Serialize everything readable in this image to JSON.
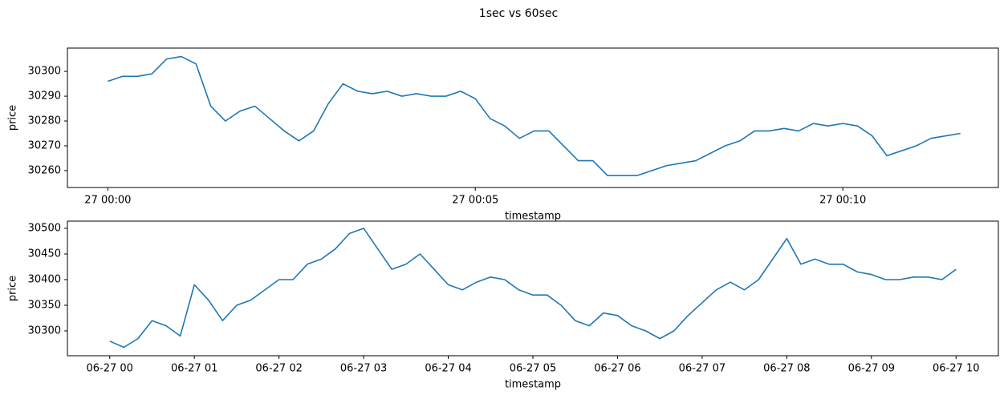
{
  "title": "1sec vs 60sec",
  "chart_data": [
    {
      "type": "line",
      "xlabel": "timestamp",
      "ylabel": "price",
      "xlim": [
        -33,
        727
      ],
      "ylim": [
        30253.2,
        30309.4
      ],
      "xticks": [
        {
          "value": 0,
          "label": "27 00:00"
        },
        {
          "value": 300,
          "label": "27 00:05"
        },
        {
          "value": 600,
          "label": "27 00:10"
        }
      ],
      "yticks": [
        30260,
        30270,
        30280,
        30290,
        30300
      ],
      "series": [
        {
          "color": "#1f77b4",
          "x": [
            0,
            12,
            24,
            36,
            48,
            60,
            72,
            84,
            96,
            108,
            120,
            132,
            144,
            156,
            168,
            180,
            192,
            204,
            216,
            228,
            240,
            252,
            264,
            276,
            288,
            300,
            312,
            324,
            336,
            348,
            360,
            372,
            384,
            396,
            408,
            420,
            432,
            444,
            456,
            468,
            480,
            492,
            504,
            516,
            528,
            540,
            552,
            564,
            576,
            588,
            600,
            612,
            624,
            636,
            648,
            660,
            672,
            684,
            696
          ],
          "values": [
            30296,
            30298,
            30298,
            30299,
            30305,
            30306,
            30303,
            30286,
            30280,
            30284,
            30286,
            30281,
            30276,
            30272,
            30276,
            30287,
            30295,
            30292,
            30291,
            30292,
            30290,
            30291,
            30290,
            30290,
            30292,
            30289,
            30281,
            30278,
            30273,
            30276,
            30276,
            30270,
            30264,
            30264,
            30258,
            30258,
            30258,
            30260,
            30262,
            30263,
            30264,
            30267,
            30270,
            30272,
            30276,
            30276,
            30277,
            30276,
            30279,
            30278,
            30279,
            30278,
            30274,
            30266,
            30268,
            30270,
            30273,
            30274,
            30275
          ]
        }
      ]
    },
    {
      "type": "line",
      "xlabel": "timestamp",
      "ylabel": "price",
      "xlim": [
        -30,
        630
      ],
      "ylim": [
        30251.6,
        30514
      ],
      "xticks": [
        {
          "value": 0,
          "label": "06-27 00"
        },
        {
          "value": 60,
          "label": "06-27 01"
        },
        {
          "value": 120,
          "label": "06-27 02"
        },
        {
          "value": 180,
          "label": "06-27 03"
        },
        {
          "value": 240,
          "label": "06-27 04"
        },
        {
          "value": 300,
          "label": "06-27 05"
        },
        {
          "value": 360,
          "label": "06-27 06"
        },
        {
          "value": 420,
          "label": "06-27 07"
        },
        {
          "value": 480,
          "label": "06-27 08"
        },
        {
          "value": 540,
          "label": "06-27 09"
        },
        {
          "value": 600,
          "label": "06-27 10"
        }
      ],
      "yticks": [
        30300,
        30350,
        30400,
        30450,
        30500
      ],
      "series": [
        {
          "color": "#1f77b4",
          "x": [
            0,
            10,
            20,
            30,
            40,
            50,
            60,
            70,
            80,
            90,
            100,
            110,
            120,
            130,
            140,
            150,
            160,
            170,
            180,
            190,
            200,
            210,
            220,
            230,
            240,
            250,
            260,
            270,
            280,
            290,
            300,
            310,
            320,
            330,
            340,
            350,
            360,
            370,
            380,
            390,
            400,
            410,
            420,
            430,
            440,
            450,
            460,
            470,
            480,
            490,
            500,
            510,
            520,
            530,
            540,
            550,
            560,
            570,
            580,
            590,
            600
          ],
          "values": [
            30280,
            30268,
            30285,
            30320,
            30310,
            30290,
            30390,
            30360,
            30320,
            30350,
            30360,
            30380,
            30400,
            30400,
            30430,
            30440,
            30460,
            30490,
            30500,
            30460,
            30420,
            30430,
            30450,
            30420,
            30390,
            30380,
            30395,
            30405,
            30400,
            30380,
            30370,
            30370,
            30350,
            30320,
            30310,
            30335,
            30330,
            30310,
            30300,
            30285,
            30300,
            30330,
            30355,
            30380,
            30395,
            30380,
            30400,
            30440,
            30480,
            30430,
            30440,
            30430,
            30430,
            30415,
            30410,
            30400,
            30400,
            30405,
            30405,
            30400,
            30420
          ]
        }
      ]
    }
  ]
}
